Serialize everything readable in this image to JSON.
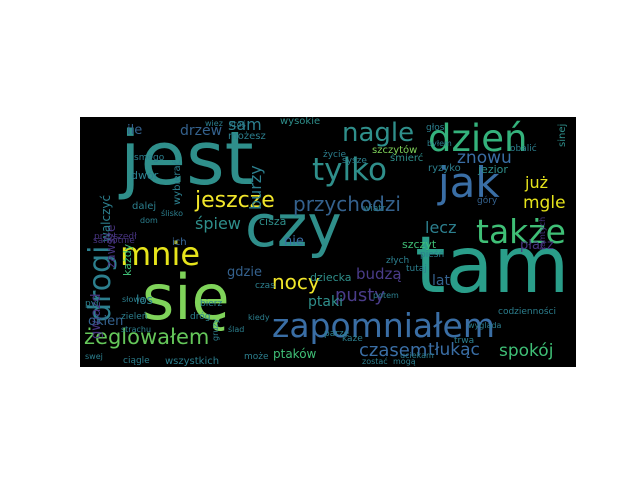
{
  "figure": {
    "background": "#ffffff",
    "panel_background": "#000000",
    "words": [
      {
        "text": "jest",
        "color": "#2f8f8b"
      },
      {
        "text": "czy",
        "color": "#2f8f8b"
      },
      {
        "text": "tam",
        "color": "#2a9e8a"
      },
      {
        "text": "się",
        "color": "#7fd35a"
      },
      {
        "text": "dzień",
        "color": "#34b27c"
      },
      {
        "text": "zapomniałem",
        "color": "#3a6ea5"
      },
      {
        "text": "tylko",
        "color": "#2f8f8b"
      },
      {
        "text": "jak",
        "color": "#3a6ea5"
      },
      {
        "text": "nagle",
        "color": "#2f8f8b"
      },
      {
        "text": "drogi",
        "color": "#2c7f8e"
      },
      {
        "text": "mnie",
        "color": "#e6e41b"
      },
      {
        "text": "także",
        "color": "#3fbf76"
      },
      {
        "text": "jeszcze",
        "color": "#f0e52a"
      },
      {
        "text": "przychodzi",
        "color": "#34618d"
      },
      {
        "text": "żeglowałem",
        "color": "#65c75a"
      },
      {
        "text": "nocy",
        "color": "#f0e52a"
      },
      {
        "text": "pusty",
        "color": "#4a3c8a"
      },
      {
        "text": "czasem",
        "color": "#3a6ea5"
      },
      {
        "text": "tłukąc",
        "color": "#3a6ea5"
      },
      {
        "text": "spokój",
        "color": "#3fbf76"
      },
      {
        "text": "znowu",
        "color": "#3a6ea5"
      },
      {
        "text": "mgle",
        "color": "#e6e41b"
      },
      {
        "text": "już",
        "color": "#e6e41b"
      },
      {
        "text": "lecz",
        "color": "#2c7f8e"
      },
      {
        "text": "sam",
        "color": "#2c7f8e"
      },
      {
        "text": "śpiew",
        "color": "#2f8f8b"
      },
      {
        "text": "drzew",
        "color": "#34618d"
      },
      {
        "text": "burzy",
        "color": "#2c7f8e"
      },
      {
        "text": "budzą",
        "color": "#4a3c8a"
      },
      {
        "text": "gwiazd",
        "color": "#46337e"
      },
      {
        "text": "okien",
        "color": "#34618d"
      },
      {
        "text": "ptaki",
        "color": "#2f8f8b"
      },
      {
        "text": "ptaków",
        "color": "#3fbf76"
      },
      {
        "text": "gdzie",
        "color": "#34618d"
      },
      {
        "text": "nie",
        "color": "#3a6ea5"
      },
      {
        "text": "dziecka",
        "color": "#2f8f8b"
      },
      {
        "text": "każdy",
        "color": "#3fbf76"
      },
      {
        "text": "zawsze",
        "color": "#46337e"
      },
      {
        "text": "walczyć",
        "color": "#2c7f8e"
      },
      {
        "text": "ile",
        "color": "#34618d"
      },
      {
        "text": "los",
        "color": "#2c7f8e"
      },
      {
        "text": "lat",
        "color": "#34618d"
      },
      {
        "text": "szczyt",
        "color": "#3fbf76"
      },
      {
        "text": "wysokie",
        "color": "#2f8f8b"
      },
      {
        "text": "szczytów",
        "color": "#7fd35a"
      },
      {
        "text": "płacz",
        "color": "#46337e"
      },
      {
        "text": "jezior",
        "color": "#2f8f8b"
      },
      {
        "text": "ryzyko",
        "color": "#2c7f8e"
      },
      {
        "text": "śmierć",
        "color": "#2f8f8b"
      },
      {
        "text": "możesz",
        "color": "#2c7f8e"
      },
      {
        "text": "wybierać",
        "color": "#2c7f8e"
      },
      {
        "text": "dwór",
        "color": "#2c7f8e"
      },
      {
        "text": "dalej",
        "color": "#2c7f8e"
      },
      {
        "text": "smego",
        "color": "#2c7f8e"
      },
      {
        "text": "ich",
        "color": "#3a6ea5"
      },
      {
        "text": "cisza",
        "color": "#2f8f8b"
      },
      {
        "text": "góry",
        "color": "#34618d"
      },
      {
        "text": "sinej",
        "color": "#2f8f8b"
      },
      {
        "text": "życie",
        "color": "#2c7f8e"
      },
      {
        "text": "złych",
        "color": "#2c7f8e"
      },
      {
        "text": "tutaj",
        "color": "#2c7f8e"
      },
      {
        "text": "trwa",
        "color": "#2c7f8e"
      },
      {
        "text": "wszystkich",
        "color": "#2c7f8e"
      },
      {
        "text": "może",
        "color": "#2c7f8e"
      },
      {
        "text": "ciągle",
        "color": "#2c7f8e"
      },
      {
        "text": "swej",
        "color": "#2c7f8e"
      },
      {
        "text": "dróg",
        "color": "#2c7f8e"
      },
      {
        "text": "bierz",
        "color": "#2c7f8e"
      },
      {
        "text": "kiedy",
        "color": "#2c7f8e"
      },
      {
        "text": "parze",
        "color": "#2c7f8e"
      },
      {
        "text": "każe",
        "color": "#2c7f8e"
      },
      {
        "text": "potem",
        "color": "#2c7f8e"
      },
      {
        "text": "zostać",
        "color": "#2c7f8e"
      },
      {
        "text": "mogą",
        "color": "#2c7f8e"
      },
      {
        "text": "codzienności",
        "color": "#2c7f8e"
      },
      {
        "text": "obalić",
        "color": "#2c7f8e"
      },
      {
        "text": "przyszedł",
        "color": "#46337e"
      },
      {
        "text": "ślad",
        "color": "#2c7f8e"
      },
      {
        "text": "wiez",
        "color": "#2c7f8e"
      },
      {
        "text": "ktoś",
        "color": "#2c7f8e"
      },
      {
        "text": "byłem",
        "color": "#2c7f8e"
      },
      {
        "text": "uciekam",
        "color": "#2c7f8e"
      },
      {
        "text": "samotnie",
        "color": "#46337e"
      },
      {
        "text": "ślisko",
        "color": "#2c7f8e"
      },
      {
        "text": "wygląda",
        "color": "#2c7f8e"
      },
      {
        "text": "zieleń",
        "color": "#2c7f8e"
      },
      {
        "text": "strachu",
        "color": "#2c7f8e"
      },
      {
        "text": "słowa",
        "color": "#2c7f8e"
      },
      {
        "text": "pył",
        "color": "#2c7f8e"
      },
      {
        "text": "syszę",
        "color": "#2c7f8e"
      },
      {
        "text": "gruzy",
        "color": "#2c7f8e"
      },
      {
        "text": "pieśń",
        "color": "#2c7f8e"
      },
      {
        "text": "tamtych",
        "color": "#46337e"
      },
      {
        "text": "wiatr",
        "color": "#2c7f8e"
      },
      {
        "text": "dom",
        "color": "#2c7f8e"
      },
      {
        "text": "czas",
        "color": "#2c7f8e"
      },
      {
        "text": "głos",
        "color": "#2c7f8e"
      }
    ]
  }
}
